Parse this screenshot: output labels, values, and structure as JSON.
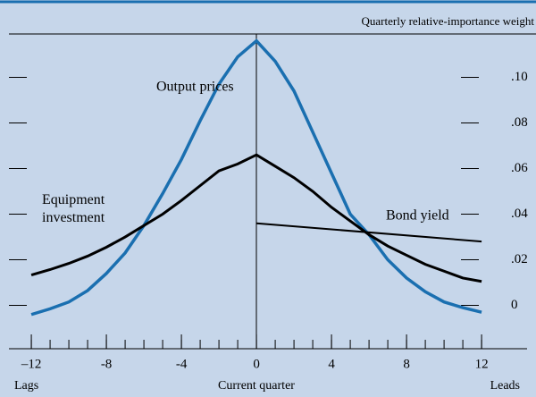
{
  "chart_data": {
    "type": "line",
    "ylabel": "Quarterly relative-importance weight",
    "xlabels": [
      "Lags",
      "Current quarter",
      "Leads"
    ],
    "xlim": [
      -13.67,
      14.9
    ],
    "ylim": [
      -0.019,
      0.119
    ],
    "xticks": [
      {
        "value": -12,
        "label": "–12"
      },
      -8,
      -4,
      0,
      4,
      8,
      12
    ],
    "xminorticks": [
      -12,
      -11,
      -10,
      -9,
      -8,
      -7,
      -6,
      -5,
      -4,
      -3,
      -2,
      -1,
      0,
      1,
      2,
      3,
      4,
      5,
      6,
      7,
      8,
      9,
      10,
      11,
      12
    ],
    "yticks": [
      {
        "value": 0,
        "label": "0"
      },
      {
        "value": 0.02,
        "label": ".02"
      },
      {
        "value": 0.04,
        "label": ".04"
      },
      {
        "value": 0.06,
        "label": ".06"
      },
      {
        "value": 0.08,
        "label": ".08"
      },
      {
        "value": 0.1,
        "label": ".10"
      }
    ],
    "series": [
      {
        "name": "Output prices",
        "color": "#1a6fb0",
        "x": [
          -12,
          -11,
          -10,
          -9,
          -8,
          -7,
          -6,
          -5,
          -4,
          -3,
          -2,
          -1,
          0,
          1,
          2,
          3,
          4,
          5,
          6,
          7,
          8,
          9,
          10,
          11,
          12
        ],
        "values": [
          -0.004,
          -0.0015,
          0.0015,
          0.0065,
          0.014,
          0.023,
          0.035,
          0.049,
          0.064,
          0.081,
          0.097,
          0.109,
          0.116,
          0.107,
          0.094,
          0.076,
          0.058,
          0.04,
          0.031,
          0.02,
          0.012,
          0.006,
          0.0015,
          -0.001,
          -0.003
        ]
      },
      {
        "name": "Equipment investment",
        "color": "#000000",
        "x": [
          -12,
          -11,
          -10,
          -9,
          -8,
          -7,
          -6,
          -5,
          -4,
          -3,
          -2,
          -1,
          0,
          1,
          2,
          3,
          4,
          5,
          6,
          7,
          8,
          9,
          10,
          11,
          12
        ],
        "values": [
          0.0133,
          0.0157,
          0.0184,
          0.0216,
          0.0255,
          0.03,
          0.035,
          0.04,
          0.046,
          0.0525,
          0.059,
          0.062,
          0.066,
          0.061,
          0.056,
          0.05,
          0.043,
          0.037,
          0.031,
          0.026,
          0.022,
          0.018,
          0.015,
          0.012,
          0.0105
        ]
      },
      {
        "name": "Bond yield",
        "color": "#000000",
        "x": [
          0,
          12
        ],
        "values": [
          0.036,
          0.028
        ]
      }
    ]
  }
}
